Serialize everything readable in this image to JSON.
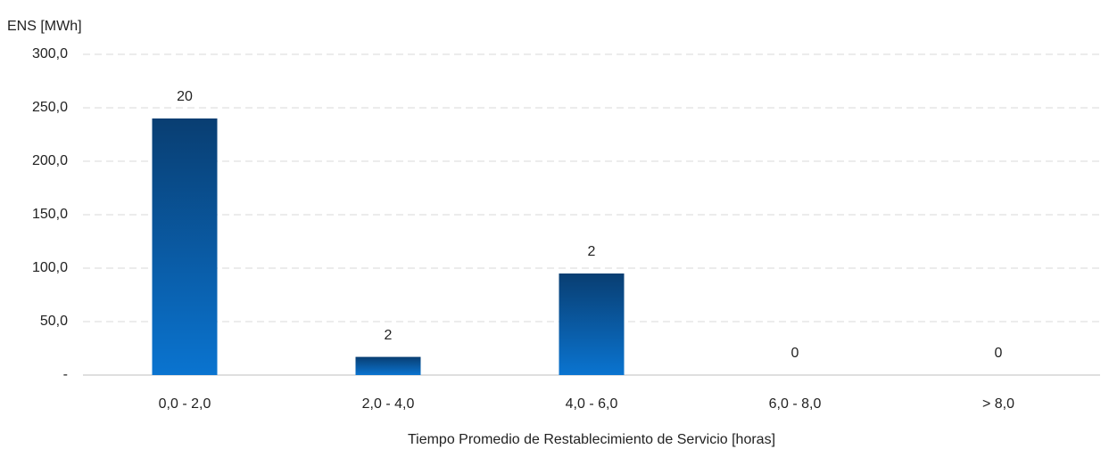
{
  "chart_data": {
    "type": "bar",
    "y_axis_label": "ENS [MWh]",
    "x_axis_label": "Tiempo Promedio de Restablecimiento de Servicio [horas]",
    "categories": [
      "0,0 - 2,0",
      "2,0 - 4,0",
      "4,0 - 6,0",
      "6,0 - 8,0",
      "> 8,0"
    ],
    "values": [
      240,
      17,
      95,
      0,
      0
    ],
    "bar_labels": [
      20,
      2,
      2,
      0,
      0
    ],
    "color": "#0a74d0",
    "ylim": [
      0,
      300
    ],
    "yticks": [
      {
        "value": 0,
        "label": "-"
      },
      {
        "value": 50,
        "label": "50,0"
      },
      {
        "value": 100,
        "label": "100,0"
      },
      {
        "value": 150,
        "label": "150,0"
      },
      {
        "value": 200,
        "label": "200,0"
      },
      {
        "value": 250,
        "label": "250,0"
      },
      {
        "value": 300,
        "label": "300,0"
      }
    ],
    "grid": true
  }
}
